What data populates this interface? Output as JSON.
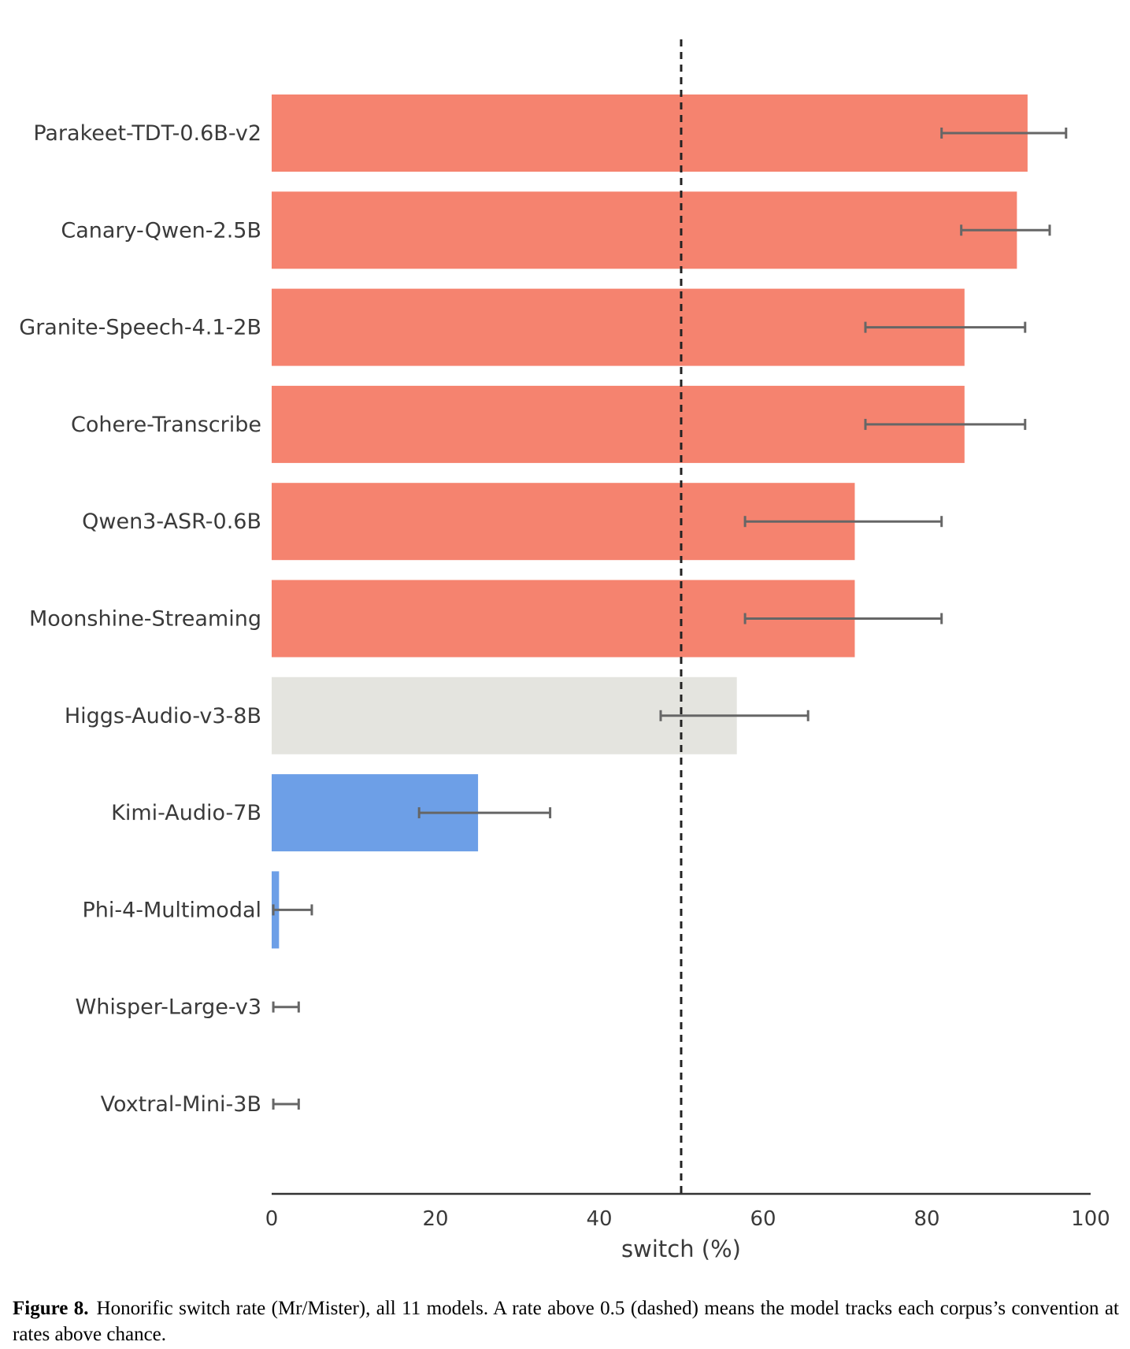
{
  "chart_data": {
    "type": "bar",
    "orientation": "horizontal",
    "categories": [
      "Parakeet-TDT-0.6B-v2",
      "Canary-Qwen-2.5B",
      "Granite-Speech-4.1-2B",
      "Cohere-Transcribe",
      "Qwen3-ASR-0.6B",
      "Moonshine-Streaming",
      "Higgs-Audio-v3-8B",
      "Kimi-Audio-7B",
      "Phi-4-Multimodal",
      "Whisper-Large-v3",
      "Voxtral-Mini-3B"
    ],
    "values": [
      92.3,
      91.0,
      84.6,
      84.6,
      71.2,
      71.2,
      56.8,
      25.2,
      0.9,
      0.0,
      0.0
    ],
    "error_low": [
      81.8,
      84.2,
      72.5,
      72.5,
      57.8,
      57.8,
      47.5,
      18.0,
      0.2,
      0.2,
      0.2
    ],
    "error_high": [
      97.0,
      95.0,
      92.0,
      92.0,
      81.8,
      81.8,
      65.5,
      34.0,
      4.9,
      3.3,
      3.3
    ],
    "bar_colors": [
      "#f5836f",
      "#f5836f",
      "#f5836f",
      "#f5836f",
      "#f5836f",
      "#f5836f",
      "#e4e4df",
      "#6d9fe7",
      "#6d9fe7",
      "#6d9fe7",
      "#6d9fe7"
    ],
    "xlabel": "switch (%)",
    "xlim": [
      0,
      100
    ],
    "xticks": [
      0,
      20,
      40,
      60,
      80,
      100
    ],
    "reference_line": 50,
    "error_color": "#666666",
    "grid": false
  },
  "caption": {
    "label": "Figure 8.",
    "text": "Honorific switch rate (Mr/Mister), all 11 models.  A rate above 0.5 (dashed) means the model tracks each corpus’s convention at rates above chance."
  }
}
